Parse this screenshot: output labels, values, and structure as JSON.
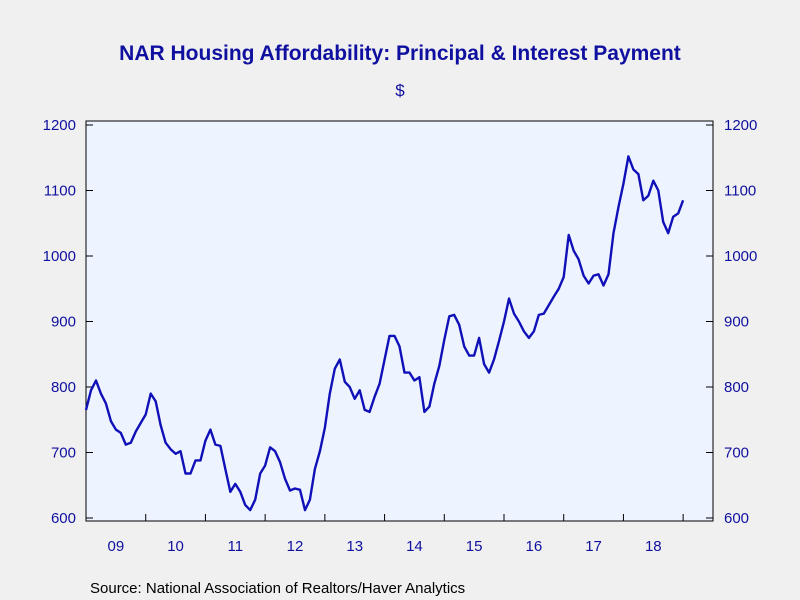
{
  "chart_data": {
    "type": "line",
    "title": "NAR Housing Affordability: Principal & Interest Payment",
    "subtitle": "$",
    "source": "Source:  National Association of Realtors/Haver Analytics",
    "ylim": [
      600,
      1200
    ],
    "y_ticks": [
      600,
      700,
      800,
      900,
      1000,
      1100,
      1200
    ],
    "y_tick_labels": [
      "600",
      "700",
      "800",
      "900",
      "1000",
      "1100",
      "1200"
    ],
    "x_tick_labels": [
      "09",
      "10",
      "11",
      "12",
      "13",
      "14",
      "15",
      "16",
      "17",
      "18"
    ],
    "x_start_year": 2009,
    "x_end_year": 2019.5,
    "grid": false,
    "legend": "none",
    "series": [
      {
        "name": "",
        "color": "#1010b8",
        "x_start": 2009.0,
        "step_months": 1,
        "values": [
          765,
          795,
          810,
          790,
          775,
          748,
          735,
          730,
          712,
          715,
          732,
          745,
          758,
          790,
          778,
          742,
          715,
          705,
          698,
          702,
          668,
          668,
          688,
          688,
          718,
          735,
          712,
          710,
          675,
          640,
          652,
          640,
          620,
          612,
          628,
          668,
          680,
          708,
          702,
          685,
          660,
          642,
          645,
          643,
          612,
          628,
          675,
          702,
          738,
          790,
          828,
          842,
          808,
          800,
          782,
          795,
          765,
          762,
          785,
          805,
          842,
          878,
          878,
          862,
          822,
          822,
          810,
          815,
          762,
          770,
          805,
          832,
          872,
          908,
          910,
          895,
          862,
          848,
          848,
          875,
          835,
          822,
          842,
          870,
          900,
          935,
          912,
          900,
          885,
          875,
          885,
          910,
          912,
          925,
          938,
          950,
          968,
          1032,
          1008,
          995,
          970,
          958,
          970,
          972,
          955,
          972,
          1035,
          1075,
          1110,
          1152,
          1132,
          1125,
          1085,
          1092,
          1115,
          1100,
          1052,
          1035,
          1060,
          1065,
          1085
        ]
      }
    ]
  }
}
